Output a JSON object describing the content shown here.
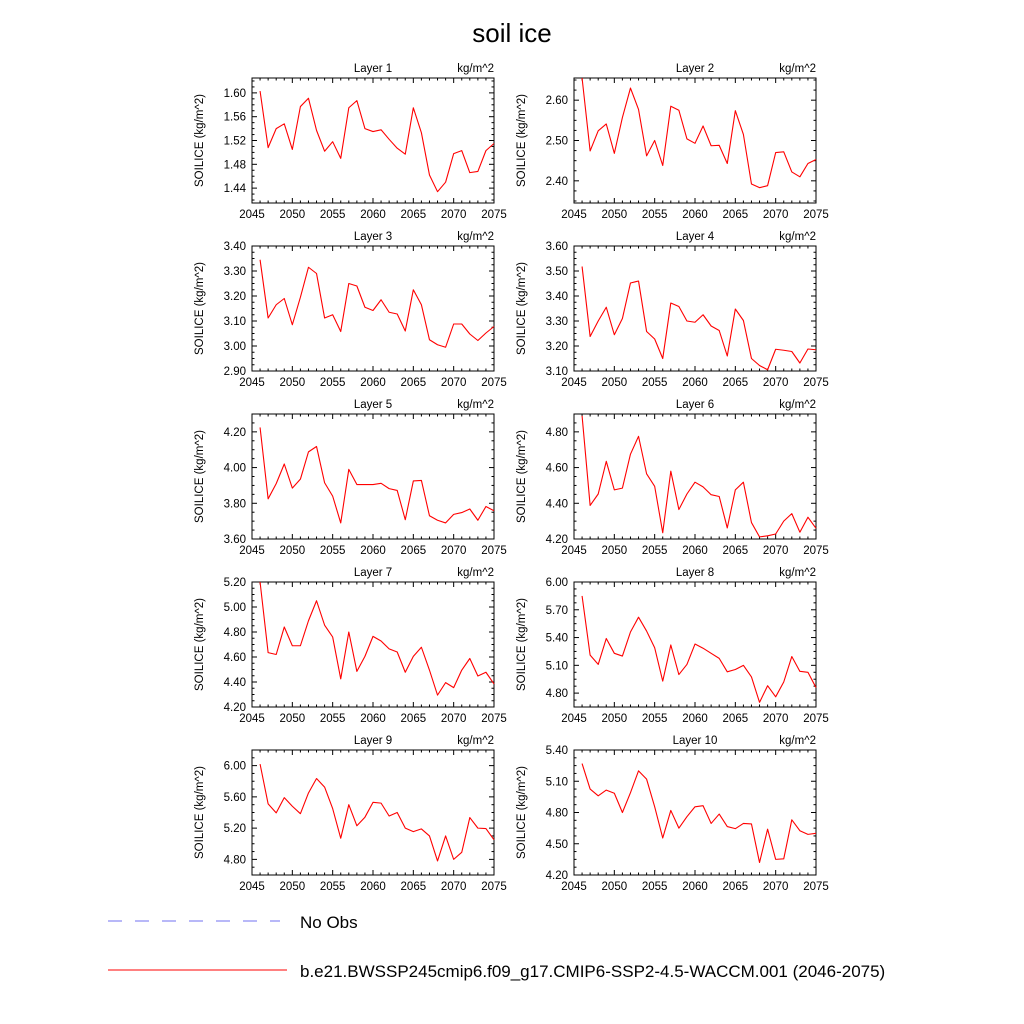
{
  "chart_data": {
    "type": "line",
    "title": "soil ice",
    "xlim": [
      2045,
      2075
    ],
    "xticks": [
      "2045",
      "2050",
      "2055",
      "2060",
      "2065",
      "2070",
      "2075"
    ],
    "x": [
      2046,
      2047,
      2048,
      2049,
      2050,
      2051,
      2052,
      2053,
      2054,
      2055,
      2056,
      2057,
      2058,
      2059,
      2060,
      2061,
      2062,
      2063,
      2064,
      2065,
      2066,
      2067,
      2068,
      2069,
      2070,
      2071,
      2072,
      2073,
      2074,
      2075
    ],
    "units": "kg/m^2",
    "ylabel": "SOILICE  (kg/m^2)",
    "legend": [
      {
        "label": "No Obs",
        "color": "#7070f0",
        "style": "dashed"
      },
      {
        "label": "b.e21.BWSSP245cmip6.f09_g17.CMIP6-SSP2-4.5-WACCM.001 (2046-2075)",
        "color": "#ff0000",
        "style": "solid"
      }
    ],
    "panels": [
      {
        "name": "Layer 1",
        "ylim": [
          1.415,
          1.625
        ],
        "yticks": [
          "1.44",
          "1.48",
          "1.52",
          "1.56",
          "1.60"
        ],
        "values": [
          1.603,
          1.508,
          1.54,
          1.548,
          1.505,
          1.577,
          1.591,
          1.537,
          1.502,
          1.518,
          1.49,
          1.575,
          1.587,
          1.54,
          1.535,
          1.538,
          1.522,
          1.507,
          1.497,
          1.575,
          1.533,
          1.462,
          1.434,
          1.45,
          1.498,
          1.503,
          1.466,
          1.468,
          1.503,
          1.515
        ]
      },
      {
        "name": "Layer 2",
        "ylim": [
          2.345,
          2.655
        ],
        "yticks": [
          "2.40",
          "2.50",
          "2.60"
        ],
        "values": [
          2.655,
          2.474,
          2.524,
          2.541,
          2.468,
          2.557,
          2.63,
          2.577,
          2.462,
          2.5,
          2.438,
          2.585,
          2.575,
          2.504,
          2.493,
          2.536,
          2.487,
          2.488,
          2.443,
          2.574,
          2.515,
          2.392,
          2.383,
          2.388,
          2.47,
          2.472,
          2.422,
          2.41,
          2.443,
          2.453
        ]
      },
      {
        "name": "Layer 3",
        "ylim": [
          2.9,
          3.4
        ],
        "yticks": [
          "2.90",
          "3.00",
          "3.10",
          "3.20",
          "3.30",
          "3.40"
        ],
        "values": [
          3.345,
          3.112,
          3.165,
          3.19,
          3.085,
          3.195,
          3.315,
          3.29,
          3.112,
          3.125,
          3.058,
          3.25,
          3.24,
          3.155,
          3.142,
          3.185,
          3.135,
          3.128,
          3.06,
          3.225,
          3.165,
          3.025,
          3.005,
          2.995,
          3.088,
          3.088,
          3.048,
          3.022,
          3.052,
          3.078
        ]
      },
      {
        "name": "Layer 4",
        "ylim": [
          3.1,
          3.6
        ],
        "yticks": [
          "3.10",
          "3.20",
          "3.30",
          "3.40",
          "3.50",
          "3.60"
        ],
        "values": [
          3.518,
          3.238,
          3.3,
          3.355,
          3.245,
          3.31,
          3.452,
          3.46,
          3.258,
          3.228,
          3.15,
          3.372,
          3.358,
          3.3,
          3.295,
          3.325,
          3.28,
          3.262,
          3.16,
          3.348,
          3.302,
          3.15,
          3.122,
          3.105,
          3.187,
          3.183,
          3.178,
          3.132,
          3.188,
          3.185
        ]
      },
      {
        "name": "Layer 5",
        "ylim": [
          3.6,
          4.3
        ],
        "yticks": [
          "3.60",
          "3.80",
          "4.00",
          "4.20"
        ],
        "values": [
          4.225,
          3.825,
          3.91,
          4.02,
          3.885,
          3.935,
          4.088,
          4.118,
          3.915,
          3.84,
          3.69,
          3.99,
          3.905,
          3.905,
          3.905,
          3.912,
          3.882,
          3.872,
          3.708,
          3.925,
          3.928,
          3.73,
          3.705,
          3.69,
          3.738,
          3.748,
          3.768,
          3.705,
          3.782,
          3.758
        ]
      },
      {
        "name": "Layer 6",
        "ylim": [
          4.2,
          4.9
        ],
        "yticks": [
          "4.20",
          "4.40",
          "4.60",
          "4.80"
        ],
        "values": [
          4.89,
          4.388,
          4.452,
          4.635,
          4.475,
          4.485,
          4.675,
          4.775,
          4.565,
          4.495,
          4.235,
          4.58,
          4.365,
          4.452,
          4.518,
          4.492,
          4.448,
          4.438,
          4.262,
          4.475,
          4.518,
          4.292,
          4.212,
          4.218,
          4.228,
          4.3,
          4.342,
          4.238,
          4.322,
          4.26
        ]
      },
      {
        "name": "Layer 7",
        "ylim": [
          4.2,
          5.2
        ],
        "yticks": [
          "4.20",
          "4.40",
          "4.60",
          "4.80",
          "5.00",
          "5.20"
        ],
        "values": [
          5.2,
          4.635,
          4.62,
          4.84,
          4.69,
          4.69,
          4.89,
          5.05,
          4.855,
          4.76,
          4.425,
          4.8,
          4.485,
          4.605,
          4.765,
          4.728,
          4.665,
          4.64,
          4.478,
          4.605,
          4.678,
          4.495,
          4.295,
          4.395,
          4.355,
          4.495,
          4.588,
          4.448,
          4.478,
          4.385
        ]
      },
      {
        "name": "Layer 8",
        "ylim": [
          4.65,
          6.0
        ],
        "yticks": [
          "4.80",
          "5.10",
          "5.40",
          "5.70",
          "6.00"
        ],
        "values": [
          5.85,
          5.21,
          5.11,
          5.39,
          5.23,
          5.2,
          5.46,
          5.62,
          5.47,
          5.29,
          4.93,
          5.32,
          5.0,
          5.11,
          5.33,
          5.285,
          5.23,
          5.175,
          5.03,
          5.055,
          5.1,
          4.975,
          4.7,
          4.88,
          4.76,
          4.92,
          5.195,
          5.035,
          5.025,
          4.86
        ]
      },
      {
        "name": "Layer 9",
        "ylim": [
          4.6,
          6.2
        ],
        "yticks": [
          "4.80",
          "5.20",
          "5.60",
          "6.00"
        ],
        "values": [
          6.02,
          5.51,
          5.395,
          5.59,
          5.48,
          5.385,
          5.65,
          5.835,
          5.725,
          5.45,
          5.07,
          5.5,
          5.23,
          5.34,
          5.53,
          5.52,
          5.355,
          5.4,
          5.2,
          5.155,
          5.19,
          5.1,
          4.78,
          5.1,
          4.8,
          4.89,
          5.335,
          5.2,
          5.195,
          5.05
        ]
      },
      {
        "name": "Layer 10",
        "ylim": [
          4.2,
          5.4
        ],
        "yticks": [
          "4.20",
          "4.50",
          "4.80",
          "5.10",
          "5.40"
        ],
        "values": [
          5.27,
          5.025,
          4.96,
          5.015,
          4.985,
          4.8,
          4.99,
          5.2,
          5.12,
          4.855,
          4.555,
          4.82,
          4.65,
          4.76,
          4.855,
          4.865,
          4.695,
          4.785,
          4.665,
          4.645,
          4.695,
          4.69,
          4.32,
          4.64,
          4.35,
          4.355,
          4.73,
          4.625,
          4.59,
          4.6
        ]
      }
    ]
  }
}
